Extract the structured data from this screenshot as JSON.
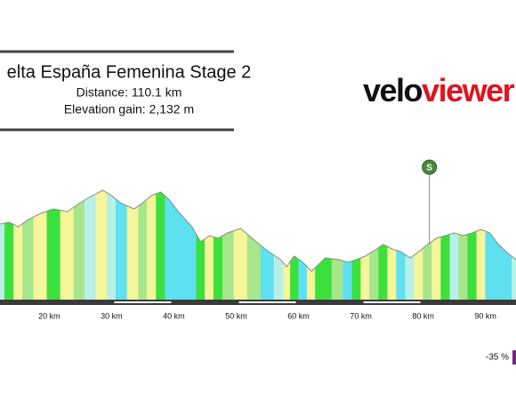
{
  "chart_data": {
    "type": "elevation-profile",
    "title": "elta España Femenina Stage 2",
    "subtitle_lines": [
      "Distance: 110.1 km",
      "Elevation gain: 2,132 m"
    ],
    "logo_parts": [
      "velo",
      "viewer"
    ],
    "x": [
      12.1,
      13.6,
      15.0,
      16.4,
      18.6,
      20.7,
      22.9,
      25.0,
      26.4,
      28.6,
      30.0,
      31.4,
      33.6,
      35.0,
      36.4,
      37.9,
      39.3,
      40.7,
      42.9,
      44.3,
      45.7,
      47.1,
      48.6,
      50.7,
      52.9,
      55.0,
      57.1,
      58.1,
      59.3,
      60.7,
      62.1,
      63.3,
      64.3,
      66.4,
      67.9,
      69.3,
      70.7,
      72.1,
      73.6,
      75.0,
      76.4,
      77.9,
      79.3,
      80.7,
      82.1,
      83.6,
      85.0,
      86.4,
      87.9,
      89.3,
      90.7,
      92.1,
      93.6,
      94.9
    ],
    "values": [
      85,
      87,
      82,
      89,
      97,
      102,
      99,
      109,
      115,
      123,
      117,
      109,
      102,
      109,
      117,
      121,
      112,
      99,
      82,
      65,
      72,
      69,
      75,
      80,
      67,
      55,
      45,
      37,
      49,
      42,
      32,
      40,
      47,
      45,
      42,
      45,
      49,
      55,
      62,
      57,
      54,
      47,
      54,
      62,
      69,
      72,
      75,
      72,
      75,
      79,
      75,
      62,
      52,
      45
    ],
    "colors": [
      "#b8f0e8",
      "#3ce03c",
      "#f5f59a",
      "#a8e68c",
      "#f5f59a",
      "#3ce03c",
      "#f5f59a",
      "#a8e68c",
      "#b8f0e8",
      "#f5f59a",
      "#b8f0e8",
      "#5ee0f0",
      "#f5f59a",
      "#a8e68c",
      "#f5f59a",
      "#3ce03c",
      "#5ee0f0",
      "#5ee0f0",
      "#5ee0f0",
      "#3ce03c",
      "#f5f59a",
      "#3ce03c",
      "#a8e68c",
      "#f5f59a",
      "#a8e68c",
      "#5ee0f0",
      "#b8f0e8",
      "#f5f59a",
      "#3ce03c",
      "#5ee0f0",
      "#f5f59a",
      "#3ce03c",
      "#3ce03c",
      "#a8e68c",
      "#5ee0f0",
      "#3ce03c",
      "#f5f59a",
      "#a8e68c",
      "#3ce03c",
      "#f5f59a",
      "#5ee0f0",
      "#b8f0e8",
      "#f5f59a",
      "#a8e68c",
      "#f5f59a",
      "#3ce03c",
      "#b8f0e8",
      "#a8e68c",
      "#3ce03c",
      "#f5f59a",
      "#5ee0f0",
      "#5ee0f0",
      "#5ee0f0",
      "#b8f0e8"
    ],
    "outline_color": "#8a8a8a",
    "xlim": [
      12.1,
      94.9
    ],
    "ylim": [
      0,
      150
    ],
    "xticks": [
      {
        "value": 20,
        "label": "20 km"
      },
      {
        "value": 30,
        "label": "30 km"
      },
      {
        "value": 40,
        "label": "40 km"
      },
      {
        "value": 50,
        "label": "50 km"
      },
      {
        "value": 60,
        "label": "60 km"
      },
      {
        "value": 70,
        "label": "70 km"
      },
      {
        "value": 80,
        "label": "80 km"
      },
      {
        "value": 90,
        "label": "90 km"
      }
    ],
    "markers": [
      {
        "label": "S",
        "x": 81.0,
        "color": "#4a8a3c"
      }
    ],
    "legend": {
      "label": "-35 %",
      "color": "#6a2c7a"
    }
  }
}
